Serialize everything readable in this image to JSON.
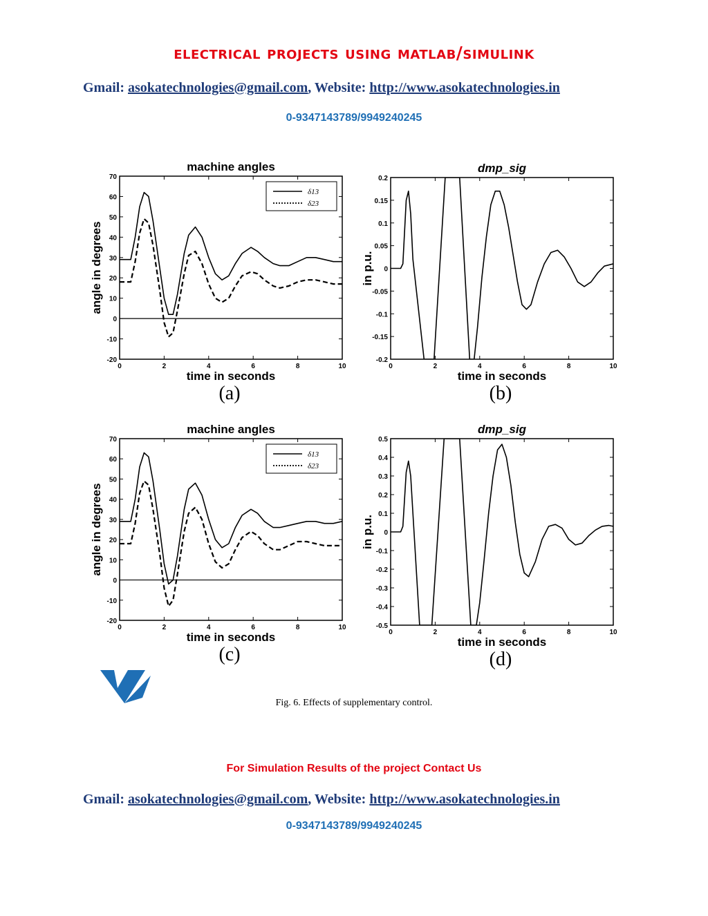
{
  "header": {
    "title": "Electrical Projects Using MATLAB/SIMULINK",
    "gmail_label": "Gmail: ",
    "gmail": "asokatechnologies@gmail.com",
    "sep": ", Website: ",
    "website": "http://www.asokatechnologies.in",
    "phone": "0-9347143789/9949240245"
  },
  "figure": {
    "caption": "Fig. 6. Effects of supplementary control."
  },
  "footer": {
    "promo": "For Simulation Results of the project Contact Us",
    "gmail_label": "Gmail: ",
    "gmail": "asokatechnologies@gmail.com",
    "sep": ", Website: ",
    "website": "http://www.asokatechnologies.in",
    "phone": "0-9347143789/9949240245"
  },
  "colors": {
    "title_red": "#e30613",
    "contact_blue": "#1f3b78",
    "phone_blue": "#1f6fb5"
  },
  "chart_data": [
    {
      "type": "line",
      "title": "machine angles",
      "subfigure": "(a)",
      "xlabel": "time in seconds",
      "ylabel": "angle in degrees",
      "xlim": [
        0,
        10
      ],
      "ylim": [
        -20,
        70
      ],
      "xticks": [
        "0",
        "2",
        "4",
        "6",
        "8",
        "10"
      ],
      "yticks": [
        "-20",
        "-10",
        "0",
        "10",
        "20",
        "30",
        "40",
        "50",
        "60",
        "70"
      ],
      "legend": {
        "position": "top-right"
      },
      "series": [
        {
          "name": "δ13",
          "style": "solid",
          "x": [
            0,
            0.5,
            0.7,
            0.9,
            1.1,
            1.3,
            1.5,
            1.8,
            2.0,
            2.2,
            2.4,
            2.6,
            2.9,
            3.1,
            3.4,
            3.7,
            4.0,
            4.3,
            4.6,
            4.9,
            5.2,
            5.5,
            5.9,
            6.2,
            6.5,
            6.9,
            7.2,
            7.6,
            8.0,
            8.4,
            8.8,
            9.2,
            9.6,
            10
          ],
          "y": [
            29,
            29,
            40,
            55,
            62,
            60,
            48,
            25,
            10,
            2,
            2,
            12,
            32,
            41,
            45,
            40,
            30,
            22,
            19,
            21,
            27,
            32,
            35,
            33,
            30,
            27,
            26,
            26,
            28,
            30,
            30,
            29,
            28,
            28
          ]
        },
        {
          "name": "δ23",
          "style": "dashed",
          "x": [
            0,
            0.5,
            0.7,
            0.9,
            1.1,
            1.3,
            1.5,
            1.8,
            2.0,
            2.2,
            2.4,
            2.6,
            2.9,
            3.1,
            3.4,
            3.7,
            4.0,
            4.3,
            4.6,
            4.9,
            5.2,
            5.5,
            5.9,
            6.2,
            6.5,
            6.9,
            7.2,
            7.6,
            8.0,
            8.4,
            8.8,
            9.2,
            9.6,
            10
          ],
          "y": [
            18,
            18,
            28,
            42,
            49,
            47,
            36,
            14,
            -2,
            -9,
            -7,
            4,
            22,
            31,
            33,
            27,
            17,
            10,
            8,
            10,
            16,
            21,
            23,
            22,
            19,
            16,
            15,
            16,
            18,
            19,
            19,
            18,
            17,
            17
          ]
        }
      ]
    },
    {
      "type": "line",
      "title": "dmp_sig",
      "subfigure": "(b)",
      "xlabel": "time in seconds",
      "ylabel": "in p.u.",
      "xlim": [
        0,
        10
      ],
      "ylim": [
        -0.2,
        0.2
      ],
      "xticks": [
        "0",
        "2",
        "4",
        "6",
        "8",
        "10"
      ],
      "yticks": [
        "-0.2",
        "-0.15",
        "-0.1",
        "-0.05",
        "0",
        "0.05",
        "0.1",
        "0.15",
        "0.2"
      ],
      "series": [
        {
          "name": "",
          "style": "solid",
          "x": [
            0,
            0.45,
            0.55,
            0.7,
            0.8,
            0.9,
            1.0,
            1.5,
            1.95,
            2.45,
            3.1,
            3.55,
            3.75,
            3.9,
            4.1,
            4.3,
            4.5,
            4.7,
            4.9,
            5.1,
            5.3,
            5.5,
            5.7,
            5.9,
            6.1,
            6.3,
            6.6,
            6.9,
            7.2,
            7.5,
            7.8,
            8.1,
            8.4,
            8.7,
            9.0,
            9.3,
            9.6,
            10
          ],
          "y": [
            0,
            0,
            0.01,
            0.15,
            0.17,
            0.12,
            0.02,
            -0.2,
            -0.2,
            0.2,
            0.2,
            -0.2,
            -0.2,
            -0.13,
            -0.02,
            0.07,
            0.14,
            0.17,
            0.17,
            0.14,
            0.09,
            0.03,
            -0.03,
            -0.08,
            -0.09,
            -0.08,
            -0.03,
            0.01,
            0.035,
            0.04,
            0.025,
            0,
            -0.03,
            -0.04,
            -0.03,
            -0.01,
            0.005,
            0.01
          ]
        }
      ]
    },
    {
      "type": "line",
      "title": "machine angles",
      "subfigure": "(c)",
      "xlabel": "time in seconds",
      "ylabel": "angle in degrees",
      "xlim": [
        0,
        10
      ],
      "ylim": [
        -20,
        70
      ],
      "xticks": [
        "0",
        "2",
        "4",
        "6",
        "8",
        "10"
      ],
      "yticks": [
        "-20",
        "-10",
        "0",
        "10",
        "20",
        "30",
        "40",
        "50",
        "60",
        "70"
      ],
      "legend": {
        "position": "top-right"
      },
      "series": [
        {
          "name": "δ13",
          "style": "solid",
          "x": [
            0,
            0.5,
            0.7,
            0.9,
            1.1,
            1.3,
            1.5,
            1.8,
            2.0,
            2.2,
            2.4,
            2.6,
            2.9,
            3.1,
            3.4,
            3.7,
            4.0,
            4.3,
            4.6,
            4.9,
            5.2,
            5.5,
            5.9,
            6.2,
            6.5,
            6.9,
            7.2,
            7.6,
            8.0,
            8.4,
            8.8,
            9.2,
            9.6,
            10
          ],
          "y": [
            29,
            29,
            40,
            56,
            63,
            61,
            49,
            25,
            8,
            -2,
            0,
            12,
            35,
            45,
            48,
            42,
            30,
            20,
            16,
            18,
            26,
            32,
            35,
            33,
            29,
            26,
            26,
            27,
            28,
            29,
            29,
            28,
            28,
            29
          ]
        },
        {
          "name": "δ23",
          "style": "dashed",
          "x": [
            0,
            0.5,
            0.7,
            0.9,
            1.1,
            1.3,
            1.5,
            1.8,
            2.0,
            2.2,
            2.4,
            2.6,
            2.9,
            3.1,
            3.4,
            3.7,
            4.0,
            4.3,
            4.6,
            4.9,
            5.2,
            5.5,
            5.9,
            6.2,
            6.5,
            6.9,
            7.2,
            7.6,
            8.0,
            8.4,
            8.8,
            9.2,
            9.6,
            10
          ],
          "y": [
            18,
            18,
            28,
            43,
            49,
            47,
            35,
            13,
            -4,
            -13,
            -10,
            3,
            24,
            33,
            36,
            30,
            18,
            9,
            6,
            8,
            15,
            21,
            24,
            22,
            18,
            15,
            15,
            17,
            19,
            19,
            18,
            17,
            17,
            17
          ]
        }
      ]
    },
    {
      "type": "line",
      "title": "dmp_sig",
      "subfigure": "(d)",
      "xlabel": "time in seconds",
      "ylabel": "in p.u.",
      "xlim": [
        0,
        10
      ],
      "ylim": [
        -0.5,
        0.5
      ],
      "xticks": [
        "0",
        "2",
        "4",
        "6",
        "8",
        "10"
      ],
      "yticks": [
        "-0.5",
        "-0.4",
        "-0.3",
        "-0.2",
        "-0.1",
        "0",
        "0.1",
        "0.2",
        "0.3",
        "0.4",
        "0.5"
      ],
      "series": [
        {
          "name": "",
          "style": "solid",
          "x": [
            0,
            0.45,
            0.55,
            0.7,
            0.8,
            0.9,
            1.0,
            1.3,
            1.85,
            2.4,
            3.1,
            3.6,
            3.85,
            4.0,
            4.2,
            4.4,
            4.6,
            4.8,
            5.0,
            5.2,
            5.4,
            5.6,
            5.8,
            6.0,
            6.2,
            6.5,
            6.8,
            7.1,
            7.4,
            7.7,
            8.0,
            8.3,
            8.6,
            8.9,
            9.2,
            9.5,
            9.8,
            10
          ],
          "y": [
            0,
            0,
            0.03,
            0.32,
            0.38,
            0.3,
            0.1,
            -0.5,
            -0.5,
            0.5,
            0.5,
            -0.5,
            -0.5,
            -0.38,
            -0.15,
            0.1,
            0.3,
            0.44,
            0.47,
            0.4,
            0.25,
            0.05,
            -0.12,
            -0.22,
            -0.24,
            -0.16,
            -0.04,
            0.03,
            0.04,
            0.02,
            -0.04,
            -0.07,
            -0.06,
            -0.02,
            0.01,
            0.03,
            0.035,
            0.03
          ]
        }
      ]
    }
  ]
}
